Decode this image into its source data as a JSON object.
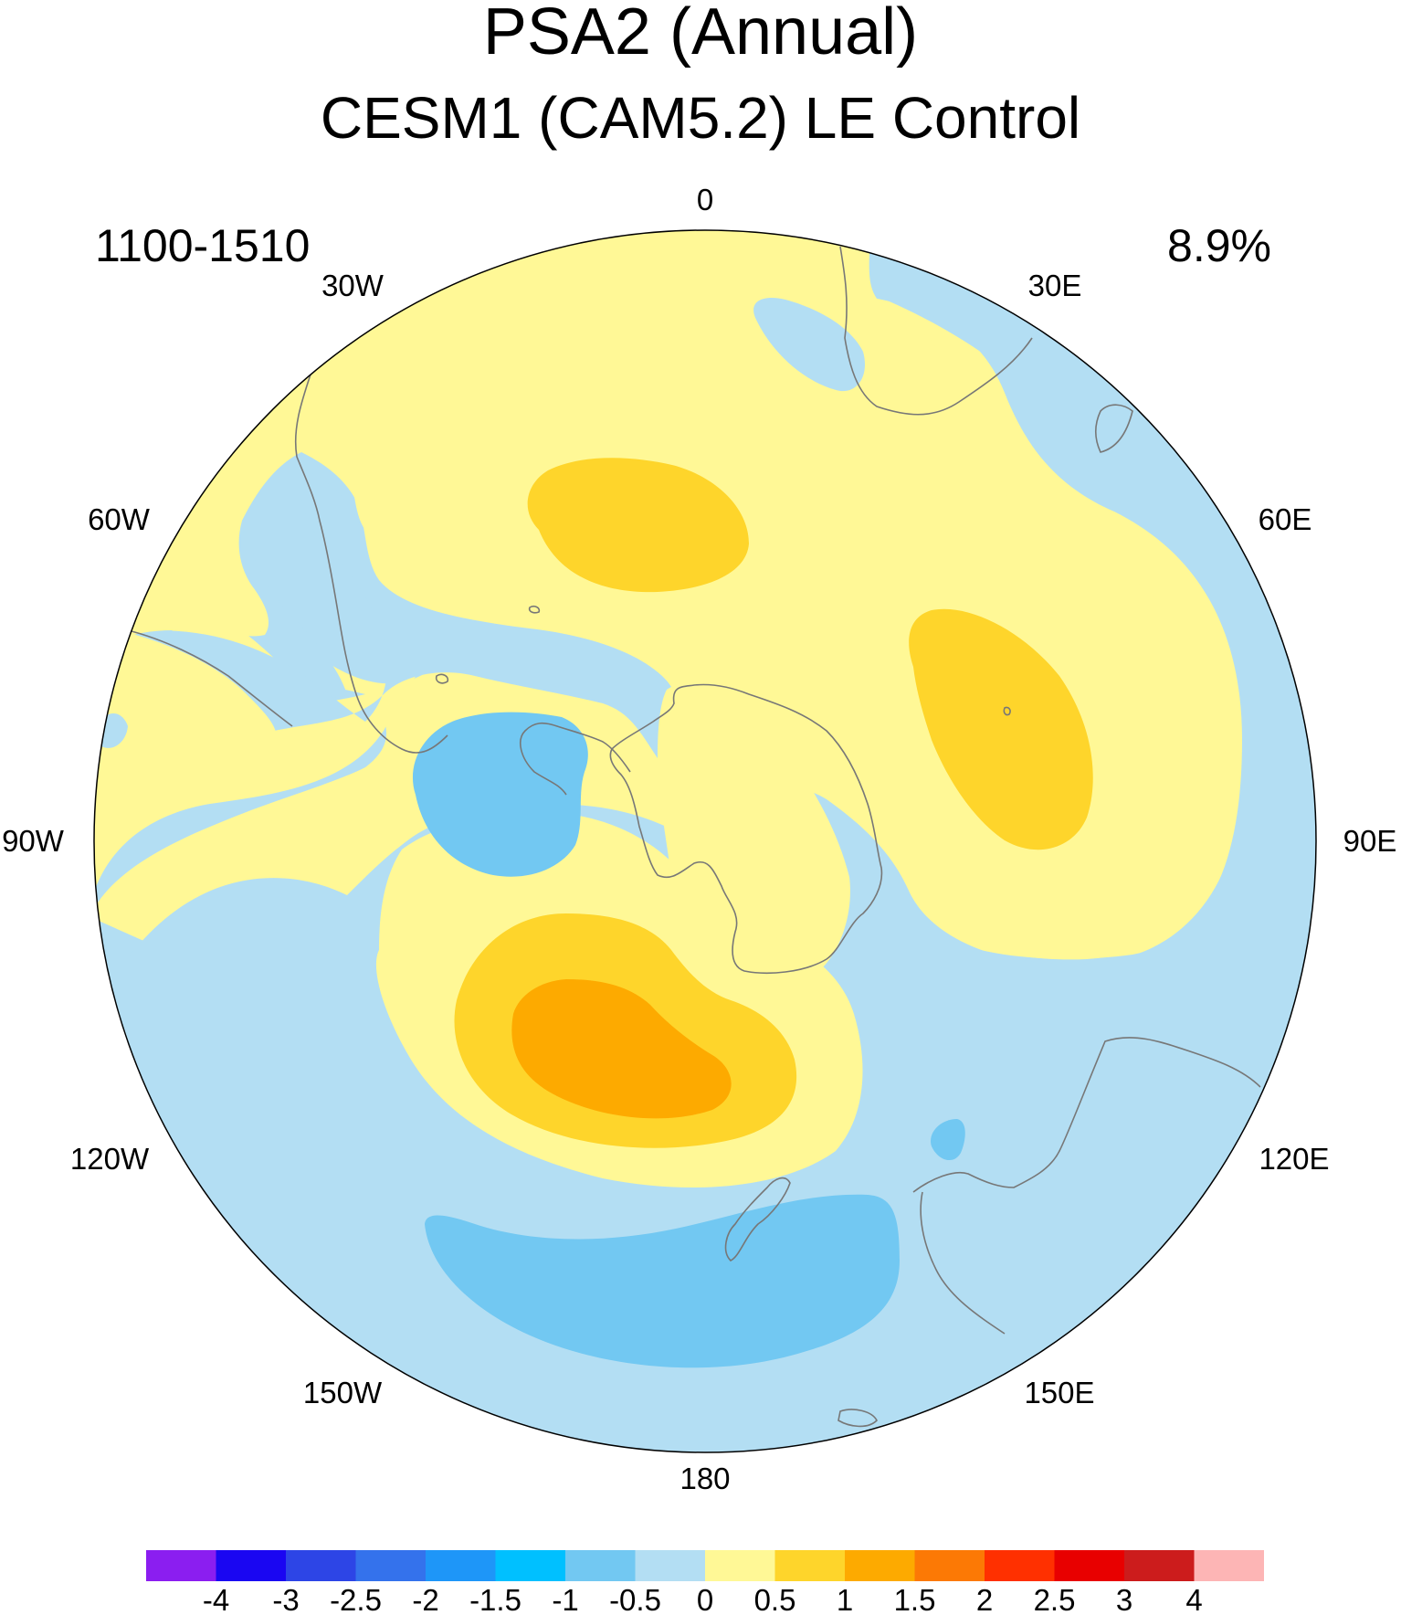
{
  "title": "PSA2 (Annual)",
  "subtitle": "CESM1 (CAM5.2) LE Control",
  "left_label": "1100-1510",
  "right_label": "8.9%",
  "longitude_labels": [
    "0",
    "30E",
    "60E",
    "90E",
    "120E",
    "150E",
    "180",
    "150W",
    "120W",
    "90W",
    "60W",
    "30W"
  ],
  "colorbar": {
    "labels": [
      "-4",
      "-3",
      "-2.5",
      "-2",
      "-1.5",
      "-1",
      "-0.5",
      "0",
      "0.5",
      "1",
      "1.5",
      "2",
      "2.5",
      "3",
      "4"
    ],
    "colors": [
      "#8b1ef0",
      "#1a06f2",
      "#2d45e6",
      "#3472ec",
      "#1e96f8",
      "#00c0ff",
      "#72c8f2",
      "#b3def3",
      "#fff896",
      "#fed52b",
      "#fdaa00",
      "#fc7905",
      "#ff3000",
      "#e80000",
      "#cc1c1c",
      "#fdb5b5"
    ]
  },
  "colors": {
    "zero_to_half": "#fff896",
    "neg_half_to_zero": "#b3def3",
    "neg_one_to_neg_half": "#72c8f2",
    "half_to_one": "#fed52b",
    "one_to_one_half": "#fdaa00",
    "coastline": "#777777"
  }
}
